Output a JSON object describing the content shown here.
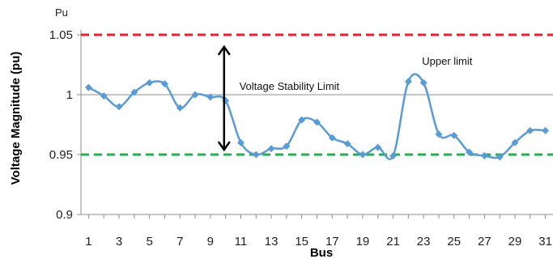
{
  "chart_data": {
    "type": "line",
    "title": "",
    "xlabel": "Bus",
    "ylabel": "Voltage Magnitude (pu)",
    "y_unit_label": "Pu",
    "ylim": [
      0.9,
      1.05
    ],
    "xlim": [
      0.5,
      31.5
    ],
    "y_ticks": [
      0.9,
      0.95,
      1,
      1.05
    ],
    "y_tick_labels": [
      "0.9",
      "0.95",
      "1",
      "1.05"
    ],
    "x_ticks": [
      1,
      3,
      5,
      7,
      9,
      11,
      13,
      15,
      17,
      19,
      21,
      23,
      25,
      27,
      29,
      31
    ],
    "x_tick_labels": [
      "1",
      "3",
      "5",
      "7",
      "9",
      "11",
      "13",
      "15",
      "17",
      "19",
      "21",
      "23",
      "25",
      "27",
      "29",
      "31"
    ],
    "grid": false,
    "legend": "none",
    "series": [
      {
        "color": "#5b9bd5",
        "marker": "diamond",
        "smooth": true,
        "x": [
          1,
          2,
          3,
          4,
          5,
          6,
          7,
          8,
          9,
          10,
          11,
          12,
          13,
          14,
          15,
          16,
          17,
          18,
          19,
          20,
          21,
          22,
          23,
          24,
          25,
          26,
          27,
          28,
          29,
          30,
          31
        ],
        "values": [
          1.006,
          0.999,
          0.99,
          1.002,
          1.01,
          1.009,
          0.989,
          1.0,
          0.998,
          0.995,
          0.96,
          0.95,
          0.955,
          0.957,
          0.979,
          0.977,
          0.964,
          0.959,
          0.95,
          0.956,
          0.949,
          1.011,
          1.01,
          0.967,
          0.966,
          0.952,
          0.949,
          0.948,
          0.96,
          0.97,
          0.97
        ]
      }
    ],
    "reference_lines": [
      {
        "y": 1.05,
        "color": "#e8232a",
        "style": "dashed"
      },
      {
        "y": 1.0,
        "color": "#8c8c8c",
        "style": "solid"
      },
      {
        "y": 0.95,
        "color": "#22b14c",
        "style": "dashed"
      }
    ],
    "arrow": {
      "x": 9.9,
      "y_from": 1.04,
      "y_to": 0.954,
      "color": "#000000"
    },
    "annotations": [
      {
        "text": "Voltage Stability Limit",
        "x": 10.9,
        "y": 1.004
      },
      {
        "text": "Upper limit",
        "x": 22.9,
        "y": 1.025
      }
    ]
  }
}
